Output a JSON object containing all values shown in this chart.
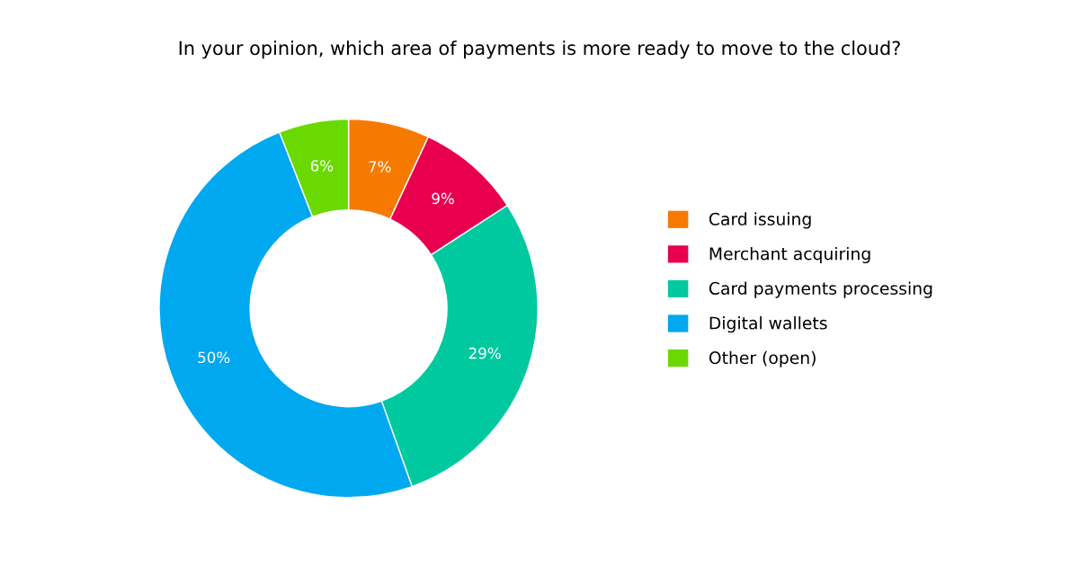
{
  "chart_data": {
    "type": "donut",
    "title": "In your opinion, which area of payments is more ready to move to the cloud?",
    "categories": [
      "Card issuing",
      "Merchant acquiring",
      "Card payments processing",
      "Digital wallets",
      "Other (open)"
    ],
    "values": [
      7,
      9,
      29,
      50,
      6
    ],
    "colors": [
      "#f77a00",
      "#e8004f",
      "#00c9a0",
      "#00a8f0",
      "#6ad900"
    ],
    "value_labels": [
      "7%",
      "9%",
      "29%",
      "50%",
      "6%"
    ],
    "legend": "right"
  }
}
